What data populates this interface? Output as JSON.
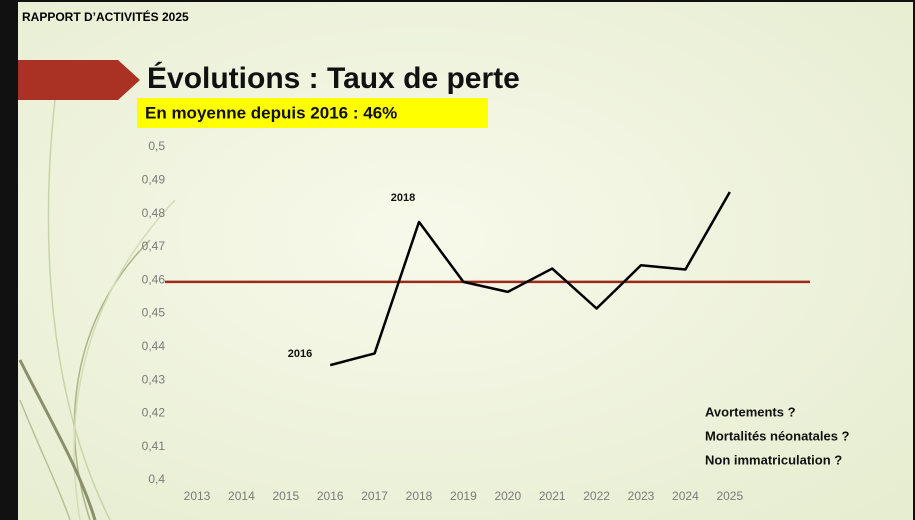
{
  "header": "RAPPORT D’ACTIVITÉS 2025",
  "chart_data": {
    "type": "line",
    "title": "Évolutions : Taux de perte",
    "subtitle": "En moyenne depuis 2016 : 46%",
    "categories": [
      "2013",
      "2014",
      "2015",
      "2016",
      "2017",
      "2018",
      "2019",
      "2020",
      "2021",
      "2022",
      "2023",
      "2024",
      "2025"
    ],
    "series": [
      {
        "name": "Taux de perte",
        "color": "#000000",
        "values": [
          null,
          null,
          null,
          0.4345,
          0.438,
          0.4775,
          0.4595,
          0.4565,
          0.4635,
          0.4515,
          0.4645,
          0.4632,
          0.4865
        ]
      }
    ],
    "reference_line": {
      "value": 0.4595,
      "color": "#9b2a1a"
    },
    "ylim": [
      0.4,
      0.5
    ],
    "yticks": [
      {
        "value": 0.4,
        "label": "0,4"
      },
      {
        "value": 0.41,
        "label": "0,41"
      },
      {
        "value": 0.42,
        "label": "0,42"
      },
      {
        "value": 0.43,
        "label": "0,43"
      },
      {
        "value": 0.44,
        "label": "0,44"
      },
      {
        "value": 0.45,
        "label": "0,45"
      },
      {
        "value": 0.46,
        "label": "0,46"
      },
      {
        "value": 0.47,
        "label": "0,47"
      },
      {
        "value": 0.48,
        "label": "0,48"
      },
      {
        "value": 0.49,
        "label": "0,49"
      },
      {
        "value": 0.5,
        "label": "0,5"
      }
    ],
    "grid": false,
    "annotations": [
      "2016",
      "2018",
      "Avortements ?",
      "Mortalités néonatales ?",
      "Non immatriculation ?"
    ]
  }
}
